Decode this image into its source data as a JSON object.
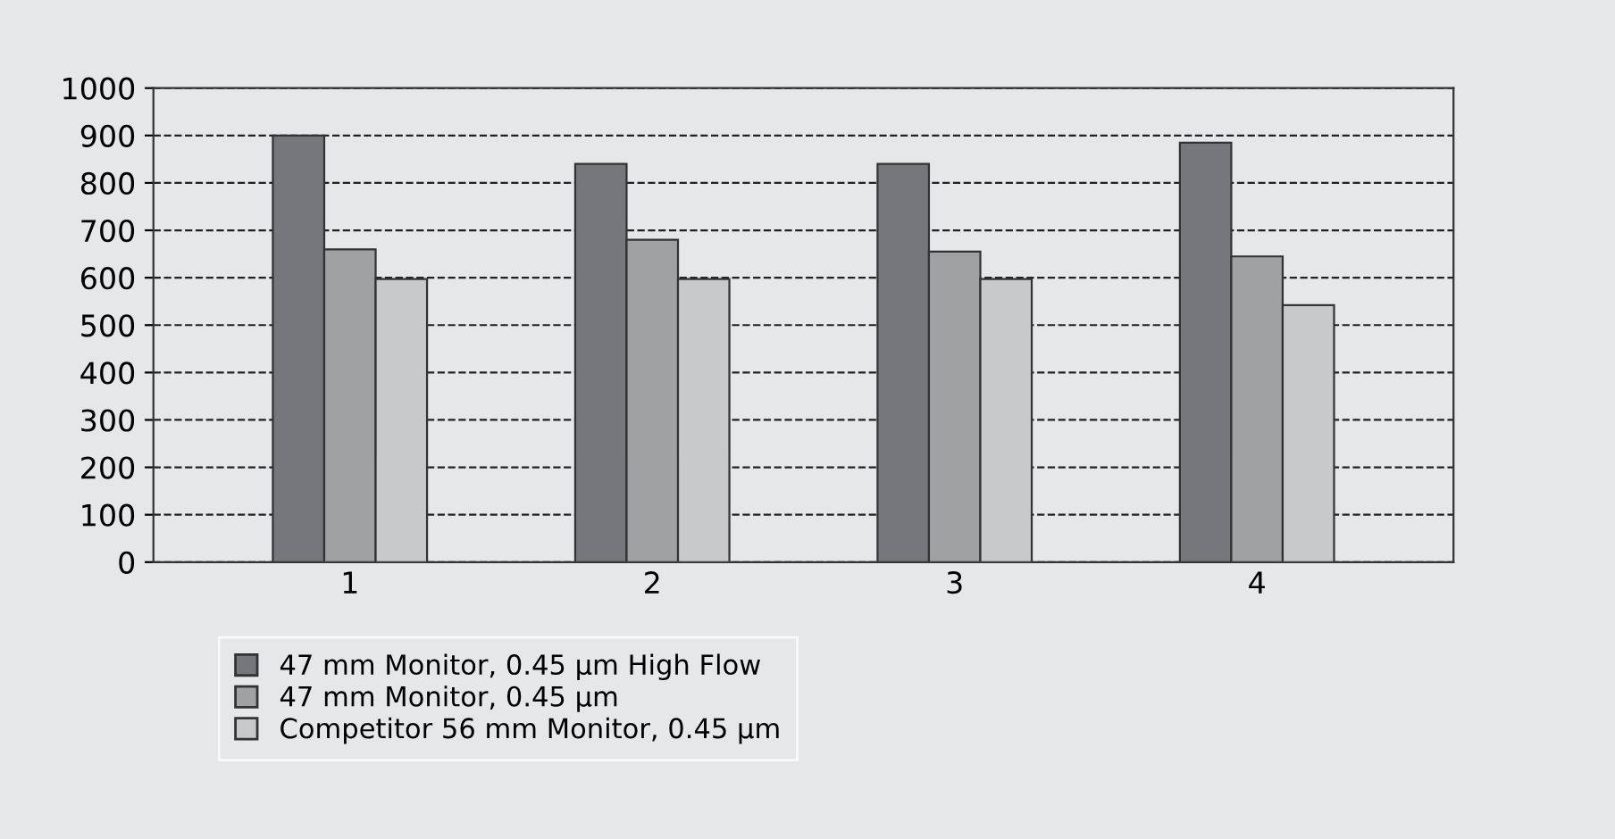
{
  "chart_data": {
    "type": "bar",
    "categories": [
      "1",
      "2",
      "3",
      "4"
    ],
    "series": [
      {
        "name": "47 mm Monitor, 0.45 µm High Flow",
        "color": "#76777a",
        "values": [
          900,
          840,
          840,
          885
        ]
      },
      {
        "name": "47 mm Monitor, 0.45 µm",
        "color": "#a0a1a3",
        "values": [
          660,
          680,
          655,
          645
        ]
      },
      {
        "name": "Competitor 56 mm Monitor, 0.45 µm",
        "color": "#c8c9cb",
        "values": [
          597,
          597,
          597,
          542
        ]
      }
    ],
    "ylim": [
      0,
      1000
    ],
    "yticks": [
      0,
      100,
      200,
      300,
      400,
      500,
      600,
      700,
      800,
      900,
      1000
    ],
    "grid": "y",
    "line_style": "dashed",
    "legend": "bottom"
  }
}
